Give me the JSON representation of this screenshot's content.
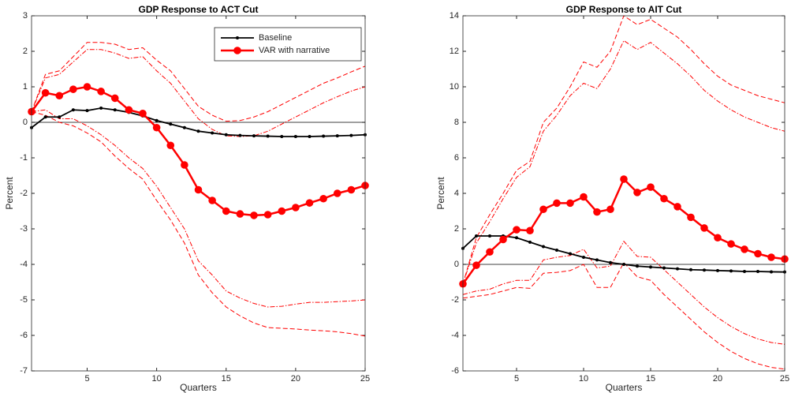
{
  "chart_data": [
    {
      "type": "line",
      "title": "GDP Response to ACT Cut",
      "xlabel": "Quarters",
      "ylabel": "Percent",
      "x": [
        1,
        2,
        3,
        4,
        5,
        6,
        7,
        8,
        9,
        10,
        11,
        12,
        13,
        14,
        15,
        16,
        17,
        18,
        19,
        20,
        21,
        22,
        23,
        24,
        25
      ],
      "xlim": [
        1,
        25
      ],
      "xticks": [
        5,
        10,
        15,
        20,
        25
      ],
      "ylim": [
        -7,
        3
      ],
      "yticks": [
        -7,
        -6,
        -5,
        -4,
        -3,
        -2,
        -1,
        0,
        1,
        2,
        3
      ],
      "zero_line": 0,
      "legend": "upper right",
      "series": [
        {
          "color": "#ff0000",
          "dash": "dashed",
          "values": [
            0.3,
            1.35,
            1.45,
            1.85,
            2.25,
            2.25,
            2.2,
            2.05,
            2.1,
            1.75,
            1.45,
            0.95,
            0.45,
            0.2,
            0.03,
            0.05,
            0.15,
            0.3,
            0.5,
            0.7,
            0.9,
            1.1,
            1.25,
            1.42,
            1.58
          ]
        },
        {
          "color": "#ff0000",
          "dash": "dashdot",
          "values": [
            0.3,
            1.25,
            1.35,
            1.7,
            2.05,
            2.05,
            1.95,
            1.8,
            1.85,
            1.45,
            1.1,
            0.6,
            0.1,
            -0.2,
            -0.38,
            -0.4,
            -0.38,
            -0.25,
            -0.05,
            0.15,
            0.35,
            0.55,
            0.72,
            0.88,
            1.0
          ]
        },
        {
          "color": "#ff0000",
          "dash": "dashdot",
          "values": [
            0.3,
            0.35,
            0.1,
            0.1,
            -0.1,
            -0.35,
            -0.65,
            -1.0,
            -1.3,
            -1.8,
            -2.4,
            -3.0,
            -3.9,
            -4.3,
            -4.75,
            -4.95,
            -5.1,
            -5.2,
            -5.18,
            -5.12,
            -5.07,
            -5.07,
            -5.05,
            -5.03,
            -5.0
          ]
        },
        {
          "color": "#ff0000",
          "dash": "dashed",
          "values": [
            0.3,
            0.2,
            0.0,
            -0.1,
            -0.3,
            -0.55,
            -0.95,
            -1.3,
            -1.6,
            -2.2,
            -2.75,
            -3.4,
            -4.3,
            -4.8,
            -5.2,
            -5.45,
            -5.65,
            -5.78,
            -5.8,
            -5.82,
            -5.85,
            -5.87,
            -5.9,
            -5.95,
            -6.02
          ]
        },
        {
          "name": "Baseline",
          "color": "#000000",
          "dash": "solid",
          "marker": "dot",
          "values": [
            -0.15,
            0.15,
            0.15,
            0.35,
            0.33,
            0.4,
            0.35,
            0.28,
            0.18,
            0.05,
            -0.05,
            -0.15,
            -0.25,
            -0.3,
            -0.35,
            -0.37,
            -0.38,
            -0.39,
            -0.4,
            -0.4,
            -0.4,
            -0.39,
            -0.38,
            -0.37,
            -0.35
          ]
        },
        {
          "name": "VAR with narrative",
          "color": "#ff0000",
          "dash": "solid",
          "marker": "circle",
          "values": [
            0.3,
            0.83,
            0.75,
            0.93,
            1.0,
            0.87,
            0.68,
            0.35,
            0.25,
            -0.15,
            -0.65,
            -1.2,
            -1.9,
            -2.2,
            -2.5,
            -2.58,
            -2.62,
            -2.6,
            -2.5,
            -2.4,
            -2.27,
            -2.15,
            -2.0,
            -1.9,
            -1.78
          ]
        }
      ]
    },
    {
      "type": "line",
      "title": "GDP Response to AIT Cut",
      "xlabel": "Quarters",
      "ylabel": "Percent",
      "x": [
        1,
        2,
        3,
        4,
        5,
        6,
        7,
        8,
        9,
        10,
        11,
        12,
        13,
        14,
        15,
        16,
        17,
        18,
        19,
        20,
        21,
        22,
        23,
        24,
        25
      ],
      "xlim": [
        1,
        25
      ],
      "xticks": [
        5,
        10,
        15,
        20,
        25
      ],
      "ylim": [
        -6,
        14
      ],
      "yticks": [
        -6,
        -4,
        -2,
        0,
        2,
        4,
        6,
        8,
        10,
        12,
        14
      ],
      "zero_line": 0,
      "series": [
        {
          "color": "#ff0000",
          "dash": "dashed",
          "values": [
            -1.1,
            1.5,
            2.8,
            4.0,
            5.3,
            5.8,
            8.0,
            8.8,
            10.0,
            11.4,
            11.1,
            12.0,
            14.0,
            13.5,
            13.8,
            13.3,
            12.8,
            12.1,
            11.3,
            10.6,
            10.1,
            9.8,
            9.5,
            9.3,
            9.1
          ]
        },
        {
          "color": "#ff0000",
          "dash": "dashdot",
          "values": [
            -1.1,
            1.2,
            2.4,
            3.7,
            4.9,
            5.5,
            7.5,
            8.4,
            9.5,
            10.2,
            9.9,
            11.0,
            12.6,
            12.1,
            12.5,
            11.9,
            11.3,
            10.6,
            9.8,
            9.2,
            8.7,
            8.3,
            8.0,
            7.7,
            7.5
          ]
        },
        {
          "color": "#ff0000",
          "dash": "dashdot",
          "values": [
            -1.7,
            -1.5,
            -1.4,
            -1.1,
            -0.9,
            -0.9,
            0.25,
            0.4,
            0.5,
            0.85,
            -0.2,
            -0.1,
            1.3,
            0.45,
            0.4,
            -0.3,
            -1.0,
            -1.7,
            -2.4,
            -3.0,
            -3.5,
            -3.9,
            -4.2,
            -4.4,
            -4.5
          ]
        },
        {
          "color": "#ff0000",
          "dash": "dashed",
          "values": [
            -1.9,
            -1.8,
            -1.7,
            -1.5,
            -1.3,
            -1.35,
            -0.5,
            -0.45,
            -0.35,
            0.0,
            -1.3,
            -1.3,
            0.1,
            -0.7,
            -0.9,
            -1.7,
            -2.4,
            -3.1,
            -3.8,
            -4.4,
            -4.9,
            -5.3,
            -5.6,
            -5.8,
            -5.9
          ]
        },
        {
          "name": "Baseline",
          "color": "#000000",
          "dash": "solid",
          "marker": "dot",
          "values": [
            0.9,
            1.6,
            1.6,
            1.6,
            1.5,
            1.25,
            1.0,
            0.8,
            0.6,
            0.4,
            0.25,
            0.1,
            0.0,
            -0.1,
            -0.15,
            -0.2,
            -0.25,
            -0.3,
            -0.32,
            -0.35,
            -0.37,
            -0.4,
            -0.4,
            -0.42,
            -0.43
          ]
        },
        {
          "name": "VAR with narrative",
          "color": "#ff0000",
          "dash": "solid",
          "marker": "circle",
          "values": [
            -1.1,
            -0.05,
            0.7,
            1.4,
            1.95,
            1.9,
            3.1,
            3.45,
            3.45,
            3.8,
            2.95,
            3.1,
            4.8,
            4.05,
            4.35,
            3.7,
            3.25,
            2.65,
            2.05,
            1.5,
            1.15,
            0.85,
            0.6,
            0.4,
            0.3
          ]
        }
      ]
    }
  ]
}
